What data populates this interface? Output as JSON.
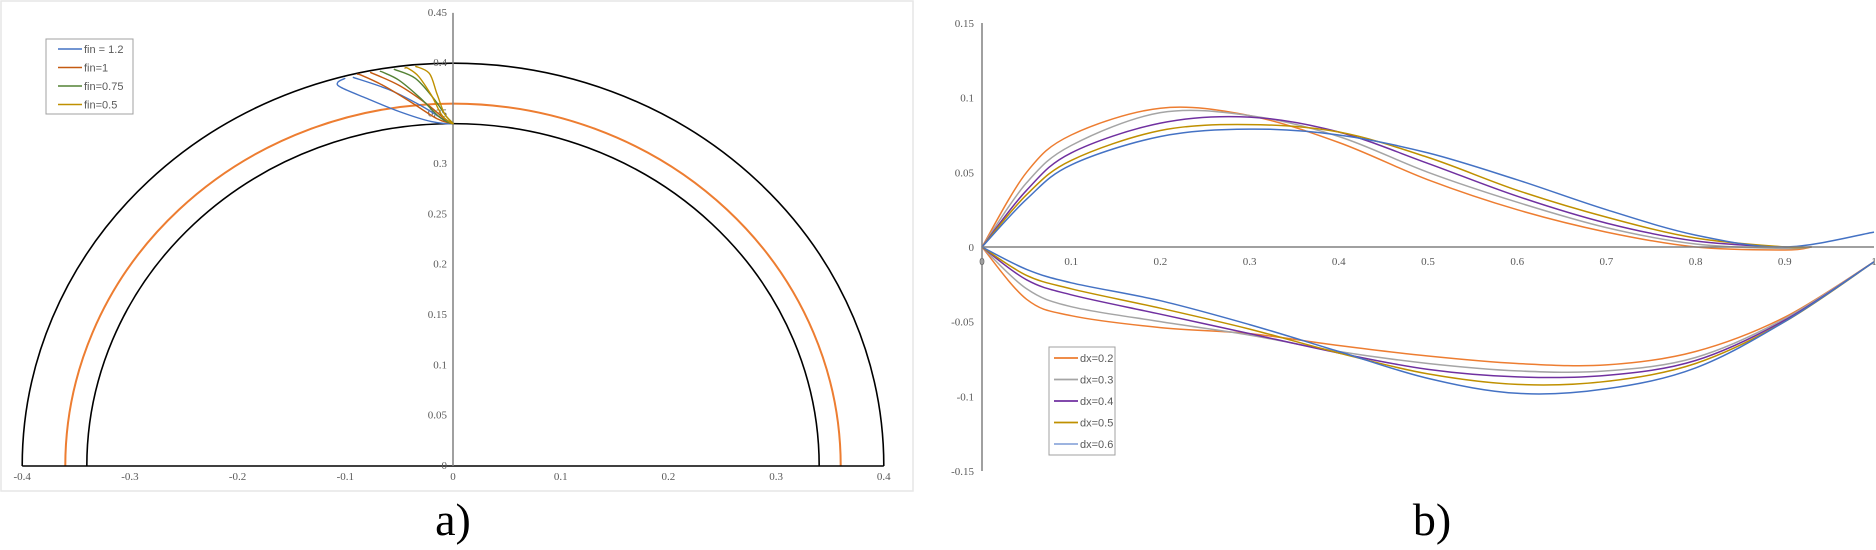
{
  "chart_data": [
    {
      "type": "line",
      "panel_label": "a)",
      "xlim": [
        -0.4,
        0.4
      ],
      "ylim": [
        0,
        0.45
      ],
      "x_ticks": [
        "-0.4",
        "-0.3",
        "-0.2",
        "-0.1",
        "0",
        "0.1",
        "0.2",
        "0.3",
        "0.4"
      ],
      "y_ticks": [
        "0",
        "0.05",
        "0.1",
        "0.15",
        "0.2",
        "0.25",
        "0.3",
        "0.35",
        "0.4",
        "0.45"
      ],
      "grid": false,
      "legend_position": "top-left",
      "reference_circles": [
        {
          "radius": 0.4,
          "color": "#000000"
        },
        {
          "radius": 0.36,
          "color": "#ED7D31"
        },
        {
          "radius": 0.34,
          "color": "#000000"
        }
      ],
      "series": [
        {
          "name": "fin = 1.2",
          "color": "#4472C4",
          "points": [
            [
              -0.093,
              0.386
            ],
            [
              -0.06,
              0.374
            ],
            [
              -0.03,
              0.358
            ],
            [
              -0.01,
              0.345
            ],
            [
              0,
              0.34
            ],
            [
              -0.02,
              0.342
            ],
            [
              -0.05,
              0.352
            ],
            [
              -0.08,
              0.365
            ],
            [
              -0.104,
              0.376
            ],
            [
              -0.107,
              0.381
            ],
            [
              -0.1,
              0.385
            ]
          ]
        },
        {
          "name": "fin=1",
          "color": "#C55A11",
          "points": [
            [
              -0.077,
              0.391
            ],
            [
              -0.05,
              0.378
            ],
            [
              -0.025,
              0.36
            ],
            [
              -0.008,
              0.345
            ],
            [
              0,
              0.34
            ],
            [
              -0.015,
              0.345
            ],
            [
              -0.04,
              0.362
            ],
            [
              -0.065,
              0.378
            ],
            [
              -0.085,
              0.388
            ],
            [
              -0.089,
              0.389
            ]
          ]
        },
        {
          "name": "fin=0.75",
          "color": "#548235",
          "points": [
            [
              -0.055,
              0.394
            ],
            [
              -0.035,
              0.385
            ],
            [
              -0.018,
              0.365
            ],
            [
              -0.006,
              0.347
            ],
            [
              0,
              0.34
            ],
            [
              -0.012,
              0.346
            ],
            [
              -0.03,
              0.365
            ],
            [
              -0.05,
              0.383
            ],
            [
              -0.065,
              0.391
            ],
            [
              -0.068,
              0.392
            ]
          ]
        },
        {
          "name": "fin=0.5",
          "color": "#BF9000",
          "points": [
            [
              -0.035,
              0.397
            ],
            [
              -0.022,
              0.39
            ],
            [
              -0.015,
              0.37
            ],
            [
              -0.008,
              0.35
            ],
            [
              0,
              0.34
            ],
            [
              -0.01,
              0.348
            ],
            [
              -0.02,
              0.368
            ],
            [
              -0.032,
              0.387
            ],
            [
              -0.042,
              0.395
            ],
            [
              -0.045,
              0.395
            ]
          ]
        }
      ]
    },
    {
      "type": "line",
      "panel_label": "b)",
      "xlim": [
        0,
        1
      ],
      "ylim": [
        -0.15,
        0.15
      ],
      "x_ticks": [
        "0",
        "0.1",
        "0.2",
        "0.3",
        "0.4",
        "0.5",
        "0.6",
        "0.7",
        "0.8",
        "0.9",
        "1"
      ],
      "y_ticks": [
        "0.15",
        "0.1",
        "0.05",
        "0",
        "-0.05",
        "-0.1",
        "-0.15"
      ],
      "grid": false,
      "legend_position": "bottom-left",
      "x": [
        0,
        0.05,
        0.1,
        0.2,
        0.3,
        0.4,
        0.5,
        0.6,
        0.7,
        0.8,
        0.9,
        1
      ],
      "series": [
        {
          "name": "dx=0.2",
          "color": "#ED7D31",
          "upper": [
            0,
            0.05,
            0.075,
            0.093,
            0.088,
            0.07,
            0.045,
            0.025,
            0.01,
            0.0,
            -0.002,
            null
          ],
          "lower": [
            0,
            -0.035,
            -0.046,
            -0.054,
            -0.058,
            -0.066,
            -0.073,
            -0.078,
            -0.079,
            -0.07,
            -0.047,
            -0.01
          ]
        },
        {
          "name": "dx=0.3",
          "color": "#A5A5A5",
          "upper": [
            0,
            0.043,
            0.068,
            0.09,
            0.088,
            0.074,
            0.05,
            0.03,
            0.013,
            0.002,
            -0.001,
            null
          ],
          "lower": [
            0,
            -0.028,
            -0.04,
            -0.05,
            -0.059,
            -0.07,
            -0.078,
            -0.083,
            -0.083,
            -0.074,
            -0.048,
            -0.01
          ]
        },
        {
          "name": "dx=0.4",
          "color": "#7030A0",
          "upper": [
            0,
            0.038,
            0.063,
            0.083,
            0.087,
            0.077,
            0.056,
            0.034,
            0.016,
            0.004,
            0,
            null
          ],
          "lower": [
            0,
            -0.022,
            -0.032,
            -0.045,
            -0.058,
            -0.071,
            -0.082,
            -0.087,
            -0.086,
            -0.076,
            -0.049,
            -0.01
          ]
        },
        {
          "name": "dx=0.5",
          "color": "#BF9000",
          "upper": [
            0,
            0.035,
            0.058,
            0.078,
            0.082,
            0.077,
            0.06,
            0.038,
            0.02,
            0.006,
            0,
            null
          ],
          "lower": [
            0,
            -0.019,
            -0.028,
            -0.041,
            -0.055,
            -0.071,
            -0.085,
            -0.092,
            -0.09,
            -0.078,
            -0.05,
            -0.01
          ]
        },
        {
          "name": "dx=0.6",
          "color": "#4472C4",
          "legend_color": "#8FAADC",
          "upper": [
            0,
            0.032,
            0.055,
            0.074,
            0.079,
            0.075,
            0.063,
            0.045,
            0.025,
            0.008,
            0,
            0.01
          ],
          "lower": [
            0,
            -0.015,
            -0.024,
            -0.036,
            -0.052,
            -0.07,
            -0.088,
            -0.098,
            -0.095,
            -0.081,
            -0.05,
            -0.01
          ]
        }
      ]
    }
  ]
}
